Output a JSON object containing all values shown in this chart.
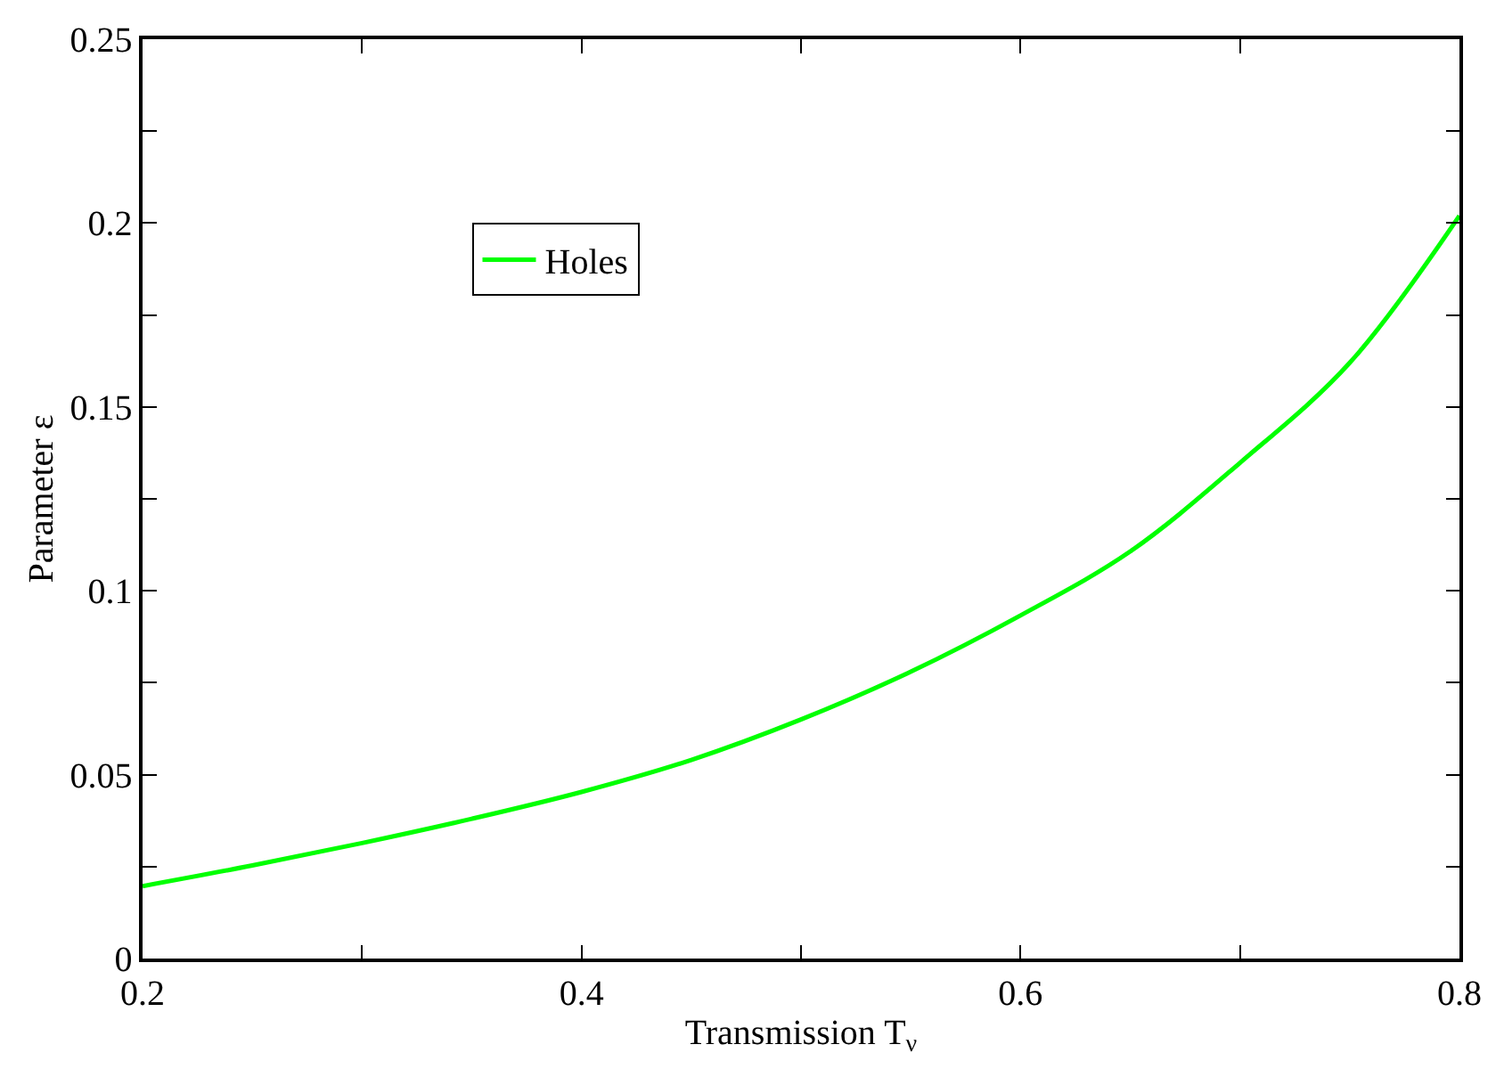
{
  "chart_data": {
    "type": "line",
    "xlabel": "Transmission T$_{ν}$",
    "ylabel": "Parameter ε",
    "x": [
      0.2,
      0.25,
      0.3,
      0.35,
      0.4,
      0.45,
      0.5,
      0.55,
      0.6,
      0.65,
      0.7,
      0.75,
      0.8
    ],
    "series": [
      {
        "name": "Holes",
        "color": "#00ff00",
        "values": [
          0.0197,
          0.0253,
          0.0314,
          0.038,
          0.0453,
          0.054,
          0.065,
          0.078,
          0.0933,
          0.1107,
          0.1348,
          0.162,
          0.202
        ]
      }
    ],
    "xlim": [
      0.2,
      0.8
    ],
    "xticks": [
      0.2,
      {
        "value": 0.3,
        "label": null
      },
      0.4,
      {
        "value": 0.5,
        "label": null
      },
      0.6,
      {
        "value": 0.7,
        "label": null
      },
      0.8
    ],
    "ylim": [
      0,
      0.25
    ],
    "yticks": [
      0,
      {
        "value": 0.025,
        "label": null
      },
      0.05,
      {
        "value": 0.075,
        "label": null
      },
      0.1,
      {
        "value": 0.125,
        "label": null
      },
      0.15,
      {
        "value": 0.175,
        "label": null
      },
      0.2,
      {
        "value": 0.225,
        "label": null
      },
      0.25
    ],
    "legend": "top left",
    "marker": "none",
    "line_style": "solid"
  }
}
